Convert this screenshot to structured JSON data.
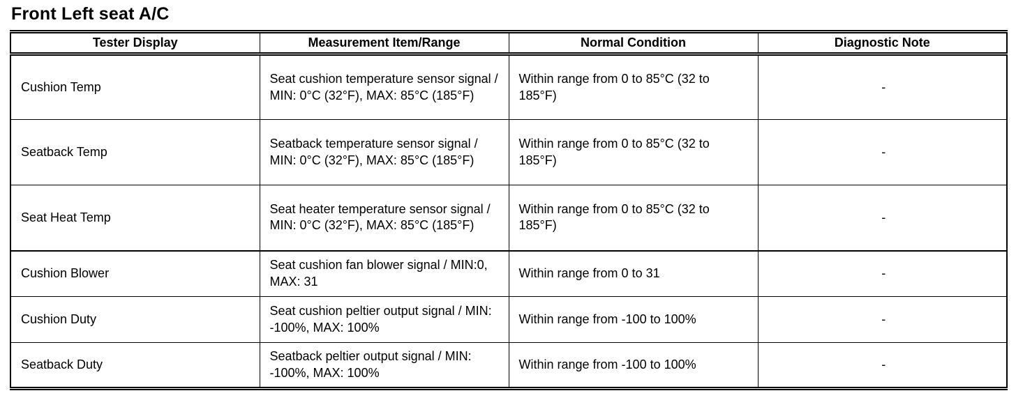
{
  "page": {
    "title": "Front Left seat A/C"
  },
  "table": {
    "headers": [
      "Tester Display",
      "Measurement Item/Range",
      "Normal Condition",
      "Diagnostic Note"
    ],
    "rows": [
      [
        "Cushion Temp",
        "Seat cushion temperature sensor signal / MIN: 0°C (32°F), MAX: 85°C (185°F)",
        "Within range from 0 to 85°C (32 to 185°F)",
        "-"
      ],
      [
        "Seatback Temp",
        "Seatback temperature sensor signal / MIN: 0°C (32°F), MAX: 85°C (185°F)",
        "Within range from 0 to 85°C (32 to 185°F)",
        "-"
      ],
      [
        "Seat Heat Temp",
        "Seat heater temperature sensor signal / MIN: 0°C (32°F), MAX: 85°C (185°F)",
        "Within range from 0 to 85°C (32 to 185°F)",
        "-"
      ],
      [
        "Cushion Blower",
        "Seat cushion fan blower signal / MIN:0, MAX: 31",
        "Within range from 0 to 31",
        "-"
      ],
      [
        "Cushion Duty",
        "Seat cushion peltier output signal / MIN: -100%, MAX: 100%",
        "Within range from -100 to 100%",
        "-"
      ],
      [
        "Seatback Duty",
        "Seatback peltier output signal / MIN: -100%, MAX: 100%",
        "Within range from -100 to 100%",
        "-"
      ]
    ]
  }
}
